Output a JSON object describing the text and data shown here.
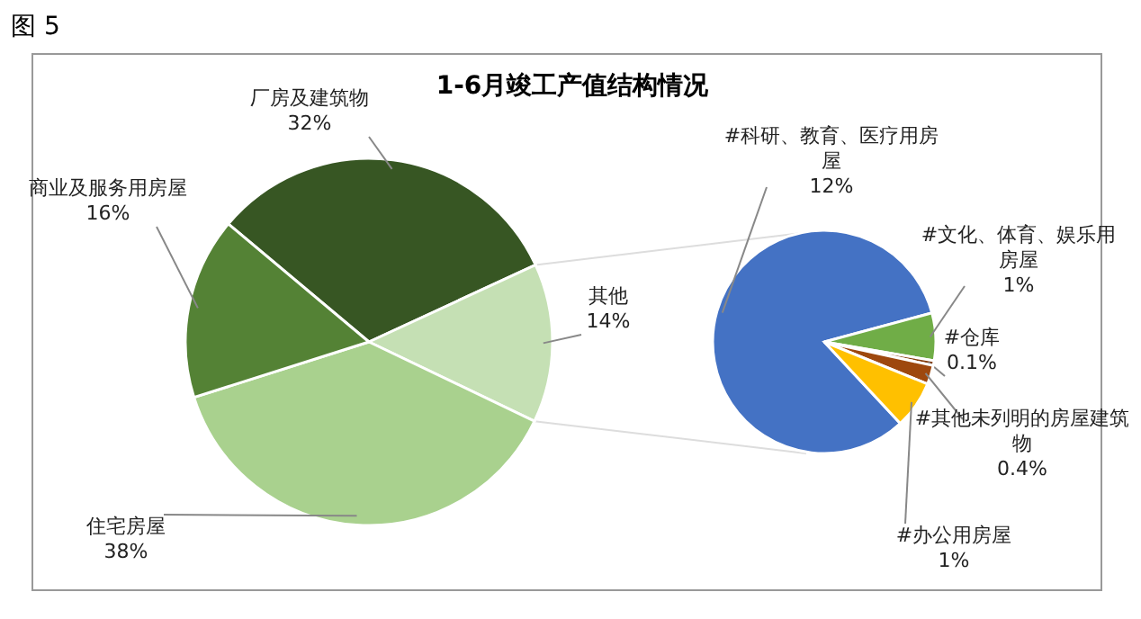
{
  "chart_data": [
    {
      "type": "pie",
      "title": "1-6月竣工产值结构情况",
      "annotations": [
        "图 5"
      ],
      "categories": [
        "厂房及建筑物",
        "其他",
        "住宅房屋",
        "商业及服务用房屋"
      ],
      "values": [
        32,
        14,
        38,
        16
      ],
      "value_labels": [
        "32%",
        "14%",
        "38%",
        "16%"
      ],
      "colors": [
        "#375623",
        "#c5e0b4",
        "#a9d18e",
        "#548235"
      ]
    },
    {
      "type": "pie",
      "categories": [
        "#科研、教育、医疗用房屋",
        "#文化、体育、娱乐用房屋",
        "#仓库",
        "#其他未列明的房屋建筑物",
        "#办公用房屋"
      ],
      "values": [
        12,
        1,
        0.1,
        0.4,
        1
      ],
      "value_labels": [
        "12%",
        "1%",
        "0.1%",
        "0.4%",
        "1%"
      ],
      "colors": [
        "#4472c4",
        "#70ad47",
        "#843c0c",
        "#9e480e",
        "#ffc000"
      ]
    }
  ]
}
